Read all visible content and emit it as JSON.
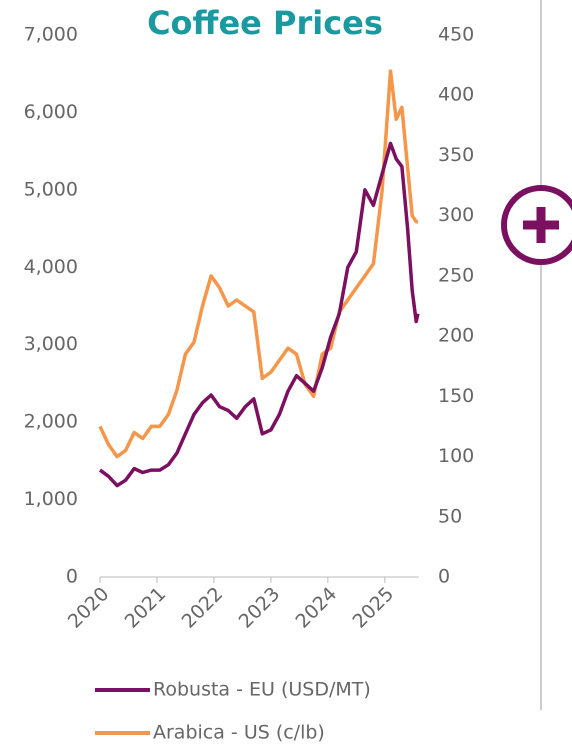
{
  "chart_data": {
    "type": "line",
    "title": "Coffee Prices",
    "xlim": [
      2020,
      2025.6
    ],
    "xticks": [
      2020,
      2021,
      2022,
      2023,
      2024,
      2025
    ],
    "ylim": [
      0,
      7000
    ],
    "yticks": [
      0,
      {
        "value": 1000,
        "label": "1,000"
      },
      {
        "value": 2000,
        "label": "2,000"
      },
      {
        "value": 3000,
        "label": "3,000"
      },
      {
        "value": 4000,
        "label": "4,000"
      },
      {
        "value": 5000,
        "label": "5,000"
      },
      {
        "value": 6000,
        "label": "6,000"
      },
      {
        "value": 7000,
        "label": "7,000"
      }
    ],
    "y2lim": [
      0,
      450
    ],
    "y2ticks": [
      0,
      50,
      100,
      150,
      200,
      250,
      300,
      350,
      400,
      450
    ],
    "x": [
      2020.0,
      2020.15,
      2020.3,
      2020.45,
      2020.6,
      2020.75,
      2020.9,
      2021.05,
      2021.2,
      2021.35,
      2021.5,
      2021.65,
      2021.8,
      2021.95,
      2022.1,
      2022.25,
      2022.4,
      2022.55,
      2022.7,
      2022.85,
      2023.0,
      2023.15,
      2023.3,
      2023.45,
      2023.6,
      2023.75,
      2023.9,
      2024.05,
      2024.2,
      2024.35,
      2024.5,
      2024.65,
      2024.8,
      2024.95,
      2025.1,
      2025.2,
      2025.3,
      2025.4,
      2025.48,
      2025.55,
      2025.58
    ],
    "series": [
      {
        "name": "Robusta - EU (USD/MT)",
        "color": "#7b1060",
        "values": [
          1380,
          1300,
          1180,
          1250,
          1400,
          1350,
          1380,
          1380,
          1450,
          1600,
          1850,
          2100,
          2250,
          2350,
          2200,
          2150,
          2050,
          2200,
          2300,
          1850,
          1900,
          2100,
          2400,
          2600,
          2500,
          2400,
          2700,
          3100,
          3400,
          4000,
          4200,
          5000,
          4800,
          5200,
          5600,
          5400,
          5300,
          4500,
          3700,
          3300,
          3400
        ]
      },
      {
        "name": "Arabica - US (c/lb)",
        "color": "#f5964a",
        "axis": "y2",
        "values": [
          125,
          110,
          100,
          105,
          120,
          115,
          125,
          125,
          135,
          155,
          185,
          195,
          225,
          250,
          240,
          225,
          230,
          225,
          220,
          165,
          170,
          180,
          190,
          185,
          160,
          150,
          185,
          190,
          220,
          230,
          240,
          250,
          260,
          320,
          420,
          380,
          390,
          340,
          300,
          295,
          295
        ]
      }
    ]
  }
}
